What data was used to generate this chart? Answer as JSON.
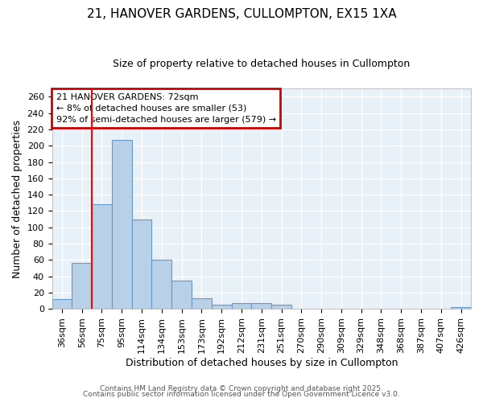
{
  "title1": "21, HANOVER GARDENS, CULLOMPTON, EX15 1XA",
  "title2": "Size of property relative to detached houses in Cullompton",
  "xlabel": "Distribution of detached houses by size in Cullompton",
  "ylabel": "Number of detached properties",
  "categories": [
    "36sqm",
    "56sqm",
    "75sqm",
    "95sqm",
    "114sqm",
    "134sqm",
    "153sqm",
    "173sqm",
    "192sqm",
    "212sqm",
    "231sqm",
    "251sqm",
    "270sqm",
    "290sqm",
    "309sqm",
    "329sqm",
    "348sqm",
    "368sqm",
    "387sqm",
    "407sqm",
    "426sqm"
  ],
  "values": [
    12,
    56,
    128,
    207,
    110,
    60,
    35,
    13,
    5,
    7,
    7,
    5,
    0,
    0,
    0,
    0,
    0,
    0,
    0,
    0,
    2
  ],
  "bar_color": "#b8d0e8",
  "bar_edge_color": "#6699cc",
  "background_color": "#ffffff",
  "plot_bg_color": "#e8f0f8",
  "grid_color": "#ffffff",
  "redline_index": 2,
  "annotation_text": "21 HANOVER GARDENS: 72sqm\n← 8% of detached houses are smaller (53)\n92% of semi-detached houses are larger (579) →",
  "annotation_box_color": "#ffffff",
  "annotation_box_edge": "#cc0000",
  "footer1": "Contains HM Land Registry data © Crown copyright and database right 2025.",
  "footer2": "Contains public sector information licensed under the Open Government Licence v3.0.",
  "ylim": [
    0,
    270
  ],
  "yticks": [
    0,
    20,
    40,
    60,
    80,
    100,
    120,
    140,
    160,
    180,
    200,
    220,
    240,
    260
  ],
  "title1_fontsize": 11,
  "title2_fontsize": 9,
  "ylabel_fontsize": 9,
  "xlabel_fontsize": 9,
  "tick_fontsize": 8,
  "footer_fontsize": 6.5
}
